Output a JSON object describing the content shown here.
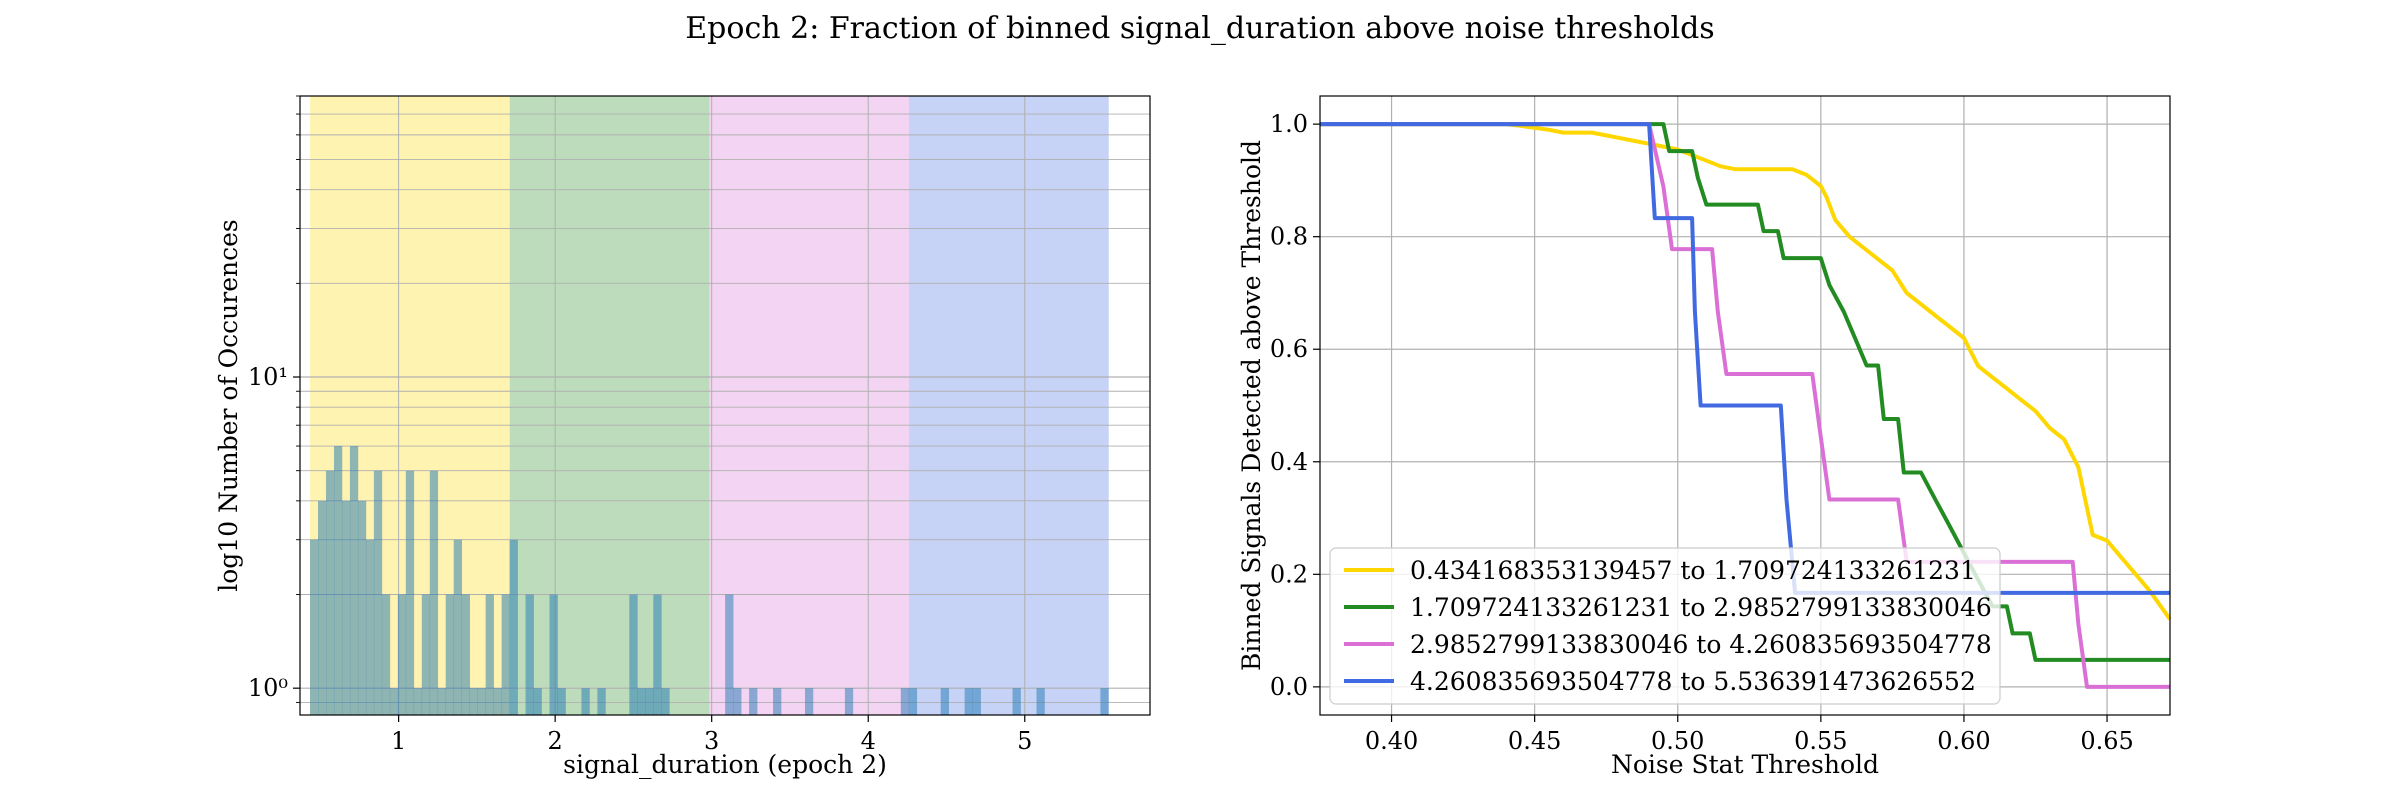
{
  "suptitle": "Epoch 2: Fraction of binned signal_duration above noise thresholds",
  "chart_data": [
    {
      "type": "bar",
      "subtype": "histogram",
      "yscale": "log",
      "xlabel": "signal_duration (epoch 2)",
      "ylabel": "log10 Number of Occurences",
      "xlim": [
        0.37,
        5.8
      ],
      "ylim": [
        0.82,
        80
      ],
      "xticks": [
        1,
        2,
        3,
        4,
        5
      ],
      "yticks": [
        {
          "value": 1,
          "label": "10⁰"
        },
        {
          "value": 10,
          "label": "10¹"
        }
      ],
      "grid": true,
      "shaded_bins": [
        {
          "from": 0.434168353139457,
          "to": 1.709724133261231,
          "color": "#ffd700"
        },
        {
          "from": 1.709724133261231,
          "to": 2.9852799133830046,
          "color": "#228b22"
        },
        {
          "from": 2.9852799133830046,
          "to": 4.260835693504778,
          "color": "#da70d6"
        },
        {
          "from": 4.260835693504778,
          "to": 5.536391473626552,
          "color": "#4169e1"
        }
      ],
      "hist_color": "#1f77b4",
      "bar_width": 0.051,
      "bars": [
        {
          "x": 0.434,
          "v": 3
        },
        {
          "x": 0.485,
          "v": 4
        },
        {
          "x": 0.536,
          "v": 5
        },
        {
          "x": 0.587,
          "v": 6
        },
        {
          "x": 0.638,
          "v": 4
        },
        {
          "x": 0.689,
          "v": 6
        },
        {
          "x": 0.74,
          "v": 4
        },
        {
          "x": 0.791,
          "v": 3
        },
        {
          "x": 0.842,
          "v": 5
        },
        {
          "x": 0.893,
          "v": 2
        },
        {
          "x": 0.944,
          "v": 1
        },
        {
          "x": 0.995,
          "v": 2
        },
        {
          "x": 1.046,
          "v": 5
        },
        {
          "x": 1.097,
          "v": 1
        },
        {
          "x": 1.148,
          "v": 2
        },
        {
          "x": 1.199,
          "v": 5
        },
        {
          "x": 1.25,
          "v": 1
        },
        {
          "x": 1.301,
          "v": 2
        },
        {
          "x": 1.352,
          "v": 3
        },
        {
          "x": 1.403,
          "v": 2
        },
        {
          "x": 1.454,
          "v": 1
        },
        {
          "x": 1.505,
          "v": 1
        },
        {
          "x": 1.556,
          "v": 2
        },
        {
          "x": 1.607,
          "v": 1
        },
        {
          "x": 1.658,
          "v": 2
        },
        {
          "x": 1.709,
          "v": 3
        },
        {
          "x": 1.811,
          "v": 2
        },
        {
          "x": 1.862,
          "v": 1
        },
        {
          "x": 1.964,
          "v": 2
        },
        {
          "x": 2.015,
          "v": 1
        },
        {
          "x": 2.168,
          "v": 1
        },
        {
          "x": 2.27,
          "v": 1
        },
        {
          "x": 2.474,
          "v": 2
        },
        {
          "x": 2.525,
          "v": 1
        },
        {
          "x": 2.576,
          "v": 1
        },
        {
          "x": 2.627,
          "v": 2
        },
        {
          "x": 2.678,
          "v": 1
        },
        {
          "x": 3.086,
          "v": 2
        },
        {
          "x": 3.137,
          "v": 1
        },
        {
          "x": 3.239,
          "v": 1
        },
        {
          "x": 3.392,
          "v": 1
        },
        {
          "x": 3.596,
          "v": 1
        },
        {
          "x": 3.851,
          "v": 1
        },
        {
          "x": 4.208,
          "v": 1
        },
        {
          "x": 4.259,
          "v": 1
        },
        {
          "x": 4.463,
          "v": 1
        },
        {
          "x": 4.616,
          "v": 1
        },
        {
          "x": 4.667,
          "v": 1
        },
        {
          "x": 4.922,
          "v": 1
        },
        {
          "x": 5.075,
          "v": 1
        },
        {
          "x": 5.483,
          "v": 1
        }
      ]
    },
    {
      "type": "line",
      "xlabel": "Noise Stat Threshold",
      "ylabel": "Binned Signals Detected above Threshold",
      "xlim": [
        0.375,
        0.672
      ],
      "ylim": [
        -0.05,
        1.05
      ],
      "xticks": [
        0.4,
        0.45,
        0.5,
        0.55,
        0.6,
        0.65
      ],
      "yticks": [
        0.0,
        0.2,
        0.4,
        0.6,
        0.8,
        1.0
      ],
      "grid": true,
      "legend": "lower-left",
      "series": [
        {
          "name": "0.434168353139457 to 1.709724133261231",
          "color": "#ffd700",
          "points": [
            [
              0.375,
              1.0
            ],
            [
              0.44,
              1.0
            ],
            [
              0.445,
              0.997
            ],
            [
              0.455,
              0.99
            ],
            [
              0.46,
              0.985
            ],
            [
              0.47,
              0.985
            ],
            [
              0.475,
              0.98
            ],
            [
              0.48,
              0.975
            ],
            [
              0.485,
              0.97
            ],
            [
              0.49,
              0.965
            ],
            [
              0.495,
              0.96
            ],
            [
              0.5,
              0.955
            ],
            [
              0.505,
              0.945
            ],
            [
              0.51,
              0.935
            ],
            [
              0.515,
              0.925
            ],
            [
              0.52,
              0.92
            ],
            [
              0.53,
              0.92
            ],
            [
              0.535,
              0.92
            ],
            [
              0.54,
              0.92
            ],
            [
              0.545,
              0.91
            ],
            [
              0.55,
              0.89
            ],
            [
              0.552,
              0.87
            ],
            [
              0.555,
              0.83
            ],
            [
              0.56,
              0.8
            ],
            [
              0.565,
              0.78
            ],
            [
              0.57,
              0.76
            ],
            [
              0.575,
              0.74
            ],
            [
              0.58,
              0.7
            ],
            [
              0.585,
              0.68
            ],
            [
              0.59,
              0.66
            ],
            [
              0.595,
              0.64
            ],
            [
              0.6,
              0.62
            ],
            [
              0.605,
              0.57
            ],
            [
              0.61,
              0.55
            ],
            [
              0.615,
              0.53
            ],
            [
              0.62,
              0.51
            ],
            [
              0.625,
              0.49
            ],
            [
              0.63,
              0.46
            ],
            [
              0.635,
              0.44
            ],
            [
              0.64,
              0.39
            ],
            [
              0.645,
              0.27
            ],
            [
              0.65,
              0.26
            ],
            [
              0.655,
              0.23
            ],
            [
              0.66,
              0.2
            ],
            [
              0.665,
              0.17
            ],
            [
              0.672,
              0.12
            ]
          ]
        },
        {
          "name": "1.709724133261231 to 2.9852799133830046",
          "color": "#228b22",
          "points": [
            [
              0.375,
              1.0
            ],
            [
              0.495,
              1.0
            ],
            [
              0.497,
              0.952
            ],
            [
              0.505,
              0.952
            ],
            [
              0.507,
              0.905
            ],
            [
              0.51,
              0.857
            ],
            [
              0.528,
              0.857
            ],
            [
              0.53,
              0.81
            ],
            [
              0.535,
              0.81
            ],
            [
              0.537,
              0.762
            ],
            [
              0.55,
              0.762
            ],
            [
              0.553,
              0.714
            ],
            [
              0.558,
              0.667
            ],
            [
              0.562,
              0.619
            ],
            [
              0.566,
              0.571
            ],
            [
              0.57,
              0.571
            ],
            [
              0.572,
              0.476
            ],
            [
              0.577,
              0.476
            ],
            [
              0.579,
              0.381
            ],
            [
              0.585,
              0.381
            ],
            [
              0.59,
              0.333
            ],
            [
              0.595,
              0.286
            ],
            [
              0.6,
              0.238
            ],
            [
              0.605,
              0.19
            ],
            [
              0.61,
              0.143
            ],
            [
              0.615,
              0.143
            ],
            [
              0.617,
              0.095
            ],
            [
              0.623,
              0.095
            ],
            [
              0.625,
              0.048
            ],
            [
              0.672,
              0.048
            ]
          ]
        },
        {
          "name": "2.9852799133830046 to 4.260835693504778",
          "color": "#da70d6",
          "points": [
            [
              0.375,
              1.0
            ],
            [
              0.49,
              1.0
            ],
            [
              0.495,
              0.889
            ],
            [
              0.498,
              0.778
            ],
            [
              0.512,
              0.778
            ],
            [
              0.514,
              0.667
            ],
            [
              0.517,
              0.556
            ],
            [
              0.547,
              0.556
            ],
            [
              0.55,
              0.444
            ],
            [
              0.553,
              0.333
            ],
            [
              0.577,
              0.333
            ],
            [
              0.58,
              0.222
            ],
            [
              0.638,
              0.222
            ],
            [
              0.64,
              0.111
            ],
            [
              0.643,
              0.0
            ],
            [
              0.672,
              0.0
            ]
          ]
        },
        {
          "name": "4.260835693504778 to 5.536391473626552",
          "color": "#4169e1",
          "points": [
            [
              0.375,
              1.0
            ],
            [
              0.49,
              1.0
            ],
            [
              0.492,
              0.833
            ],
            [
              0.505,
              0.833
            ],
            [
              0.506,
              0.667
            ],
            [
              0.508,
              0.5
            ],
            [
              0.536,
              0.5
            ],
            [
              0.538,
              0.333
            ],
            [
              0.541,
              0.167
            ],
            [
              0.672,
              0.167
            ]
          ]
        }
      ]
    }
  ]
}
